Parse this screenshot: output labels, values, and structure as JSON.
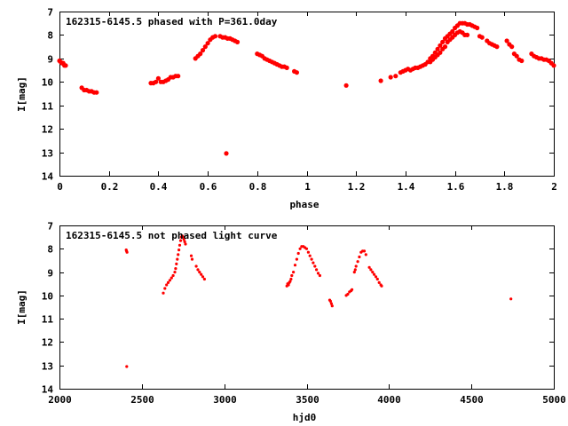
{
  "chart_data": [
    {
      "type": "scatter",
      "title": "162315-6145.5 phased with P=361.0day",
      "xlabel": "phase",
      "ylabel": "I[mag]",
      "xlim": [
        0,
        2
      ],
      "ylim": [
        7,
        14
      ],
      "y_inverted": true,
      "xticks": [
        "0",
        "0.2",
        "0.4",
        "0.6",
        "0.8",
        "1",
        "1.2",
        "1.4",
        "1.6",
        "1.8",
        "2"
      ],
      "yticks": [
        "7",
        "8",
        "9",
        "10",
        "11",
        "12",
        "13",
        "14"
      ],
      "marker_color": "#ff0000",
      "grid": false,
      "legend": "none",
      "series": [
        {
          "points": [
            [
              0.0,
              9.1
            ],
            [
              0.005,
              9.15
            ],
            [
              0.01,
              9.2
            ],
            [
              0.015,
              9.2
            ],
            [
              0.02,
              9.3
            ],
            [
              0.025,
              9.3
            ],
            [
              0.09,
              10.25
            ],
            [
              0.1,
              10.35
            ],
            [
              0.11,
              10.35
            ],
            [
              0.12,
              10.4
            ],
            [
              0.13,
              10.4
            ],
            [
              0.14,
              10.45
            ],
            [
              0.15,
              10.45
            ],
            [
              0.37,
              10.05
            ],
            [
              0.38,
              10.05
            ],
            [
              0.39,
              10.0
            ],
            [
              0.4,
              9.85
            ],
            [
              0.41,
              10.0
            ],
            [
              0.42,
              10.0
            ],
            [
              0.43,
              9.95
            ],
            [
              0.44,
              9.9
            ],
            [
              0.45,
              9.8
            ],
            [
              0.46,
              9.8
            ],
            [
              0.47,
              9.75
            ],
            [
              0.48,
              9.75
            ],
            [
              0.55,
              9.0
            ],
            [
              0.56,
              8.9
            ],
            [
              0.57,
              8.8
            ],
            [
              0.58,
              8.65
            ],
            [
              0.59,
              8.5
            ],
            [
              0.6,
              8.35
            ],
            [
              0.61,
              8.2
            ],
            [
              0.62,
              8.1
            ],
            [
              0.63,
              8.05
            ],
            [
              0.65,
              8.05
            ],
            [
              0.66,
              8.1
            ],
            [
              0.67,
              8.1
            ],
            [
              0.68,
              8.15
            ],
            [
              0.69,
              8.15
            ],
            [
              0.7,
              8.2
            ],
            [
              0.71,
              8.25
            ],
            [
              0.72,
              8.3
            ],
            [
              0.675,
              13.05
            ],
            [
              0.8,
              8.8
            ],
            [
              0.81,
              8.85
            ],
            [
              0.82,
              8.9
            ],
            [
              0.83,
              9.0
            ],
            [
              0.84,
              9.05
            ],
            [
              0.85,
              9.1
            ],
            [
              0.86,
              9.15
            ],
            [
              0.87,
              9.2
            ],
            [
              0.88,
              9.25
            ],
            [
              0.89,
              9.3
            ],
            [
              0.9,
              9.35
            ],
            [
              0.91,
              9.35
            ],
            [
              0.92,
              9.4
            ],
            [
              0.95,
              9.55
            ],
            [
              0.96,
              9.6
            ],
            [
              1.16,
              10.15
            ],
            [
              1.3,
              9.95
            ],
            [
              1.34,
              9.8
            ],
            [
              1.36,
              9.75
            ],
            [
              1.38,
              9.6
            ],
            [
              1.39,
              9.55
            ],
            [
              1.4,
              9.5
            ],
            [
              1.41,
              9.45
            ],
            [
              1.42,
              9.5
            ],
            [
              1.43,
              9.45
            ],
            [
              1.44,
              9.4
            ],
            [
              1.45,
              9.4
            ],
            [
              1.46,
              9.35
            ],
            [
              1.47,
              9.3
            ],
            [
              1.48,
              9.25
            ],
            [
              1.49,
              9.15
            ],
            [
              1.5,
              9.0
            ],
            [
              1.51,
              8.9
            ],
            [
              1.52,
              8.75
            ],
            [
              1.53,
              8.6
            ],
            [
              1.54,
              8.45
            ],
            [
              1.55,
              8.3
            ],
            [
              1.56,
              8.15
            ],
            [
              1.57,
              8.05
            ],
            [
              1.58,
              7.95
            ],
            [
              1.59,
              7.85
            ],
            [
              1.6,
              7.7
            ],
            [
              1.61,
              7.6
            ],
            [
              1.62,
              7.5
            ],
            [
              1.63,
              7.5
            ],
            [
              1.64,
              7.5
            ],
            [
              1.65,
              7.55
            ],
            [
              1.66,
              7.55
            ],
            [
              1.67,
              7.6
            ],
            [
              1.68,
              7.65
            ],
            [
              1.69,
              7.7
            ],
            [
              1.57,
              8.3
            ],
            [
              1.58,
              8.2
            ],
            [
              1.59,
              8.1
            ],
            [
              1.6,
              8.0
            ],
            [
              1.61,
              7.9
            ],
            [
              1.62,
              7.85
            ],
            [
              1.63,
              7.9
            ],
            [
              1.64,
              8.0
            ],
            [
              1.65,
              8.0
            ],
            [
              1.5,
              9.15
            ],
            [
              1.51,
              9.05
            ],
            [
              1.52,
              8.95
            ],
            [
              1.53,
              8.85
            ],
            [
              1.54,
              8.75
            ],
            [
              1.55,
              8.6
            ],
            [
              1.56,
              8.5
            ],
            [
              1.7,
              8.05
            ],
            [
              1.71,
              8.1
            ],
            [
              1.73,
              8.25
            ],
            [
              1.74,
              8.35
            ],
            [
              1.75,
              8.4
            ],
            [
              1.76,
              8.45
            ],
            [
              1.77,
              8.5
            ],
            [
              1.81,
              8.25
            ],
            [
              1.82,
              8.4
            ],
            [
              1.83,
              8.5
            ],
            [
              1.84,
              8.8
            ],
            [
              1.85,
              8.9
            ],
            [
              1.86,
              9.05
            ],
            [
              1.87,
              9.1
            ],
            [
              1.91,
              8.8
            ],
            [
              1.92,
              8.9
            ],
            [
              1.93,
              8.95
            ],
            [
              1.94,
              9.0
            ],
            [
              1.95,
              9.0
            ],
            [
              1.96,
              9.05
            ],
            [
              1.97,
              9.05
            ],
            [
              1.98,
              9.1
            ],
            [
              1.99,
              9.2
            ],
            [
              2.0,
              9.3
            ]
          ]
        }
      ]
    },
    {
      "type": "scatter",
      "title": "162315-6145.5 not phased light curve",
      "xlabel": "hjd0",
      "ylabel": "I[mag]",
      "xlim": [
        2000,
        5000
      ],
      "ylim": [
        7,
        14
      ],
      "y_inverted": true,
      "xticks": [
        "2000",
        "2500",
        "3000",
        "3500",
        "4000",
        "4500",
        "5000"
      ],
      "yticks": [
        "7",
        "8",
        "9",
        "10",
        "11",
        "12",
        "13",
        "14"
      ],
      "marker_color": "#ff0000",
      "grid": false,
      "legend": "none",
      "series": [
        {
          "points": [
            [
              2405,
              8.05
            ],
            [
              2407,
              8.1
            ],
            [
              2410,
              8.15
            ],
            [
              2408,
              13.05
            ],
            [
              2630,
              9.9
            ],
            [
              2640,
              9.7
            ],
            [
              2650,
              9.55
            ],
            [
              2660,
              9.45
            ],
            [
              2670,
              9.35
            ],
            [
              2680,
              9.25
            ],
            [
              2690,
              9.15
            ],
            [
              2700,
              9.0
            ],
            [
              2705,
              8.85
            ],
            [
              2710,
              8.65
            ],
            [
              2715,
              8.45
            ],
            [
              2720,
              8.25
            ],
            [
              2725,
              8.05
            ],
            [
              2730,
              7.85
            ],
            [
              2735,
              7.65
            ],
            [
              2740,
              7.5
            ],
            [
              2745,
              7.45
            ],
            [
              2750,
              7.5
            ],
            [
              2755,
              7.6
            ],
            [
              2760,
              7.7
            ],
            [
              2765,
              7.8
            ],
            [
              2800,
              8.3
            ],
            [
              2805,
              8.45
            ],
            [
              2830,
              8.75
            ],
            [
              2840,
              8.9
            ],
            [
              2850,
              9.0
            ],
            [
              2860,
              9.1
            ],
            [
              2870,
              9.2
            ],
            [
              2880,
              9.3
            ],
            [
              3380,
              9.6
            ],
            [
              3385,
              9.5
            ],
            [
              3390,
              9.55
            ],
            [
              3395,
              9.45
            ],
            [
              3400,
              9.4
            ],
            [
              3405,
              9.3
            ],
            [
              3410,
              9.15
            ],
            [
              3420,
              9.0
            ],
            [
              3430,
              8.7
            ],
            [
              3440,
              8.45
            ],
            [
              3450,
              8.2
            ],
            [
              3460,
              8.0
            ],
            [
              3470,
              7.9
            ],
            [
              3480,
              7.9
            ],
            [
              3490,
              7.95
            ],
            [
              3500,
              8.0
            ],
            [
              3510,
              8.15
            ],
            [
              3520,
              8.3
            ],
            [
              3530,
              8.45
            ],
            [
              3540,
              8.6
            ],
            [
              3550,
              8.75
            ],
            [
              3560,
              8.9
            ],
            [
              3570,
              9.05
            ],
            [
              3580,
              9.15
            ],
            [
              3640,
              10.2
            ],
            [
              3645,
              10.25
            ],
            [
              3650,
              10.35
            ],
            [
              3655,
              10.45
            ],
            [
              3740,
              10.0
            ],
            [
              3750,
              9.95
            ],
            [
              3760,
              9.85
            ],
            [
              3770,
              9.8
            ],
            [
              3775,
              9.75
            ],
            [
              3790,
              9.0
            ],
            [
              3795,
              8.9
            ],
            [
              3800,
              8.75
            ],
            [
              3810,
              8.55
            ],
            [
              3820,
              8.35
            ],
            [
              3830,
              8.15
            ],
            [
              3840,
              8.1
            ],
            [
              3850,
              8.1
            ],
            [
              3860,
              8.25
            ],
            [
              3880,
              8.8
            ],
            [
              3890,
              8.9
            ],
            [
              3900,
              9.0
            ],
            [
              3910,
              9.1
            ],
            [
              3920,
              9.2
            ],
            [
              3930,
              9.3
            ],
            [
              3940,
              9.45
            ],
            [
              3950,
              9.55
            ],
            [
              3955,
              9.6
            ],
            [
              4740,
              10.15
            ]
          ]
        }
      ]
    }
  ]
}
